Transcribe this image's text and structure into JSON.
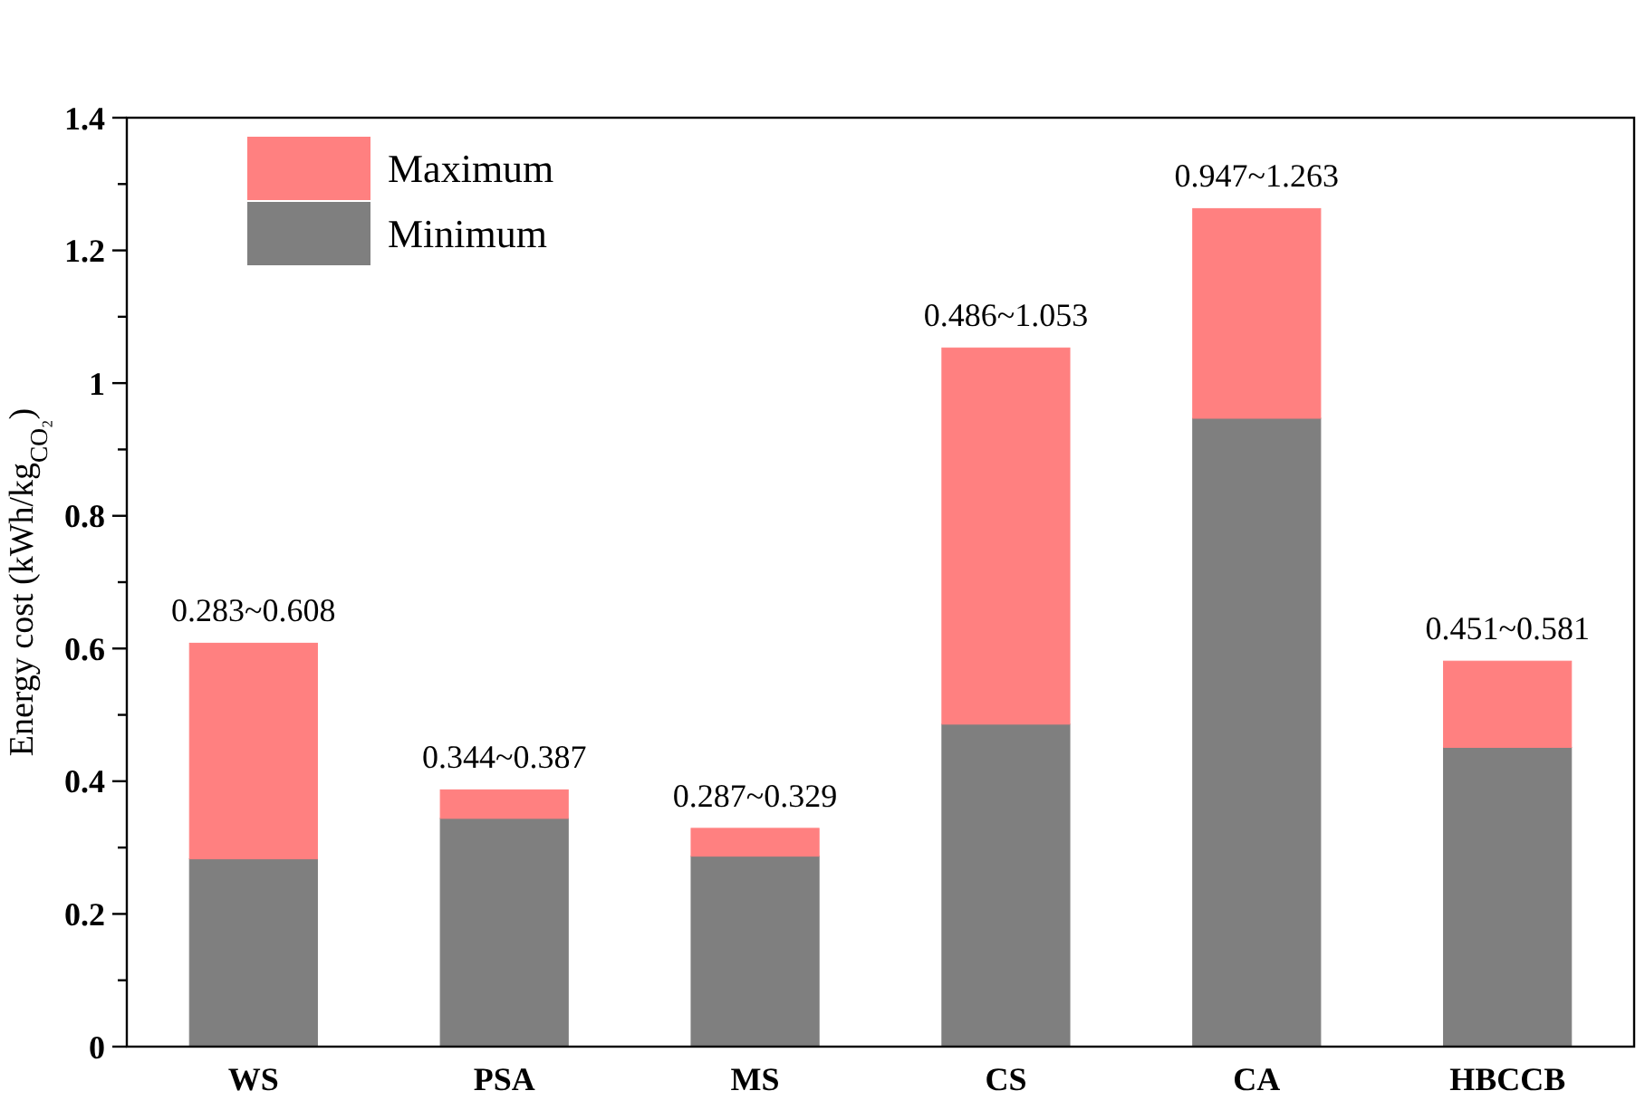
{
  "chart_data": {
    "type": "bar",
    "stacked": true,
    "ylabel": "Energy cost (kWh/kg$_{CO₂}$)",
    "categories": [
      "WS",
      "PSA",
      "MS",
      "CS",
      "CA",
      "HBCCB"
    ],
    "series": [
      {
        "name": "Minimum",
        "color": "#7f7f7f",
        "values": [
          0.283,
          0.344,
          0.287,
          0.486,
          0.947,
          0.451
        ]
      },
      {
        "name": "Maximum",
        "color": "#ff8080",
        "values": [
          0.325,
          0.043,
          0.042,
          0.567,
          0.316,
          0.13
        ]
      }
    ],
    "ylim": [
      0,
      1.4
    ],
    "yticks": [
      0,
      {
        "value": 0.1,
        "label": null
      },
      0.2,
      {
        "value": 0.3,
        "label": null
      },
      0.4,
      {
        "value": 0.5,
        "label": null
      },
      0.6,
      {
        "value": 0.7,
        "label": null
      },
      0.8,
      {
        "value": 0.9,
        "label": null
      },
      1,
      {
        "value": 1.1,
        "label": null
      },
      1.2,
      {
        "value": 1.3,
        "label": null
      },
      1.4
    ],
    "legend": "top left",
    "grid": false,
    "annotations": [
      {
        "text": "0.283~0.608",
        "x": "WS",
        "y": 0.608
      },
      {
        "text": "0.344~0.387",
        "x": "PSA",
        "y": 0.387
      },
      {
        "text": "0.287~0.329",
        "x": "MS",
        "y": 0.329
      },
      {
        "text": "0.486~1.053",
        "x": "CS",
        "y": 1.053
      },
      {
        "text": "0.947~1.263",
        "x": "CA",
        "y": 1.263
      },
      {
        "text": "0.451~0.581",
        "x": "HBCCB",
        "y": 0.581
      }
    ]
  }
}
